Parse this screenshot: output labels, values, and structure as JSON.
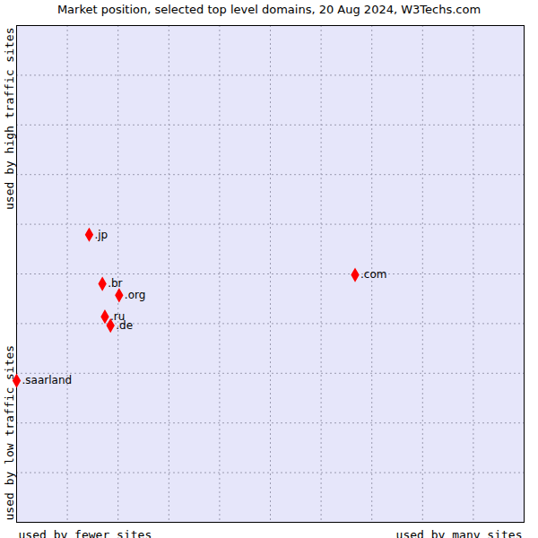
{
  "chart_data": {
    "type": "scatter",
    "title": "Market position, selected top level domains, 20 Aug 2024, W3Techs.com",
    "xlabel_left": "used by fewer sites",
    "xlabel_right": "used by many sites",
    "ylabel_bottom": "used by low traffic sites",
    "ylabel_top": "used by high traffic sites",
    "categories": [
      ".jp",
      ".br",
      ".org",
      ".ru",
      ".de",
      ".com",
      ".saarland"
    ],
    "x": [
      1.43,
      1.69,
      2.02,
      1.74,
      1.85,
      6.67,
      0
    ],
    "values": [
      5.79,
      4.8,
      4.57,
      4.14,
      3.96,
      4.98,
      2.85
    ],
    "color": "#ff0000",
    "marker": "diamond",
    "xlim": [
      0,
      10
    ],
    "ylim": [
      0,
      10
    ],
    "xticks": [
      0,
      1,
      2,
      3,
      4,
      5,
      6,
      7,
      8,
      9,
      10
    ],
    "yticks": [
      0,
      1,
      2,
      3,
      4,
      5,
      6,
      7,
      8,
      9,
      10
    ],
    "grid": true,
    "tick_labels": false
  }
}
